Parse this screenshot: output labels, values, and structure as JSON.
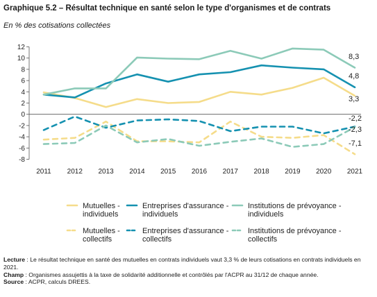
{
  "header": {
    "title": "Graphique 5.2 – Résultat technique en santé selon le type d'organismes et de contrats",
    "subtitle": "En % des cotisations collectées"
  },
  "chart_data": {
    "type": "line",
    "x": [
      "2011",
      "2012",
      "2013",
      "2014",
      "2015",
      "2016",
      "2017",
      "2018",
      "2019",
      "2020",
      "2021"
    ],
    "ylim": [
      -8,
      12
    ],
    "yticks": [
      "12",
      "10",
      "8",
      "6",
      "4",
      "2",
      "0",
      "-2",
      "-4",
      "-6",
      "-8"
    ],
    "grid": false,
    "legend_position": "bottom",
    "series": [
      {
        "name": "Mutuelles - individuels",
        "color": "#f5dc8a",
        "dash": "solid",
        "end_label": "3,3",
        "values": [
          3.9,
          2.9,
          1.3,
          2.7,
          2.0,
          2.2,
          4.0,
          3.5,
          4.7,
          6.5,
          3.3
        ]
      },
      {
        "name": "Entreprises d'assurance - individuels",
        "color": "#1591b0",
        "dash": "solid",
        "end_label": "4,8",
        "values": [
          3.5,
          3.0,
          5.5,
          7.1,
          5.8,
          7.1,
          7.5,
          8.7,
          8.3,
          8.0,
          4.8
        ]
      },
      {
        "name": "Institutions de prévoyance - individuels",
        "color": "#8ccab8",
        "dash": "solid",
        "end_label": "8,3",
        "values": [
          3.5,
          4.6,
          4.6,
          10.1,
          9.9,
          9.8,
          11.3,
          9.9,
          11.7,
          11.5,
          8.3
        ]
      },
      {
        "name": "Mutuelles - collectifs",
        "color": "#f5dc8a",
        "dash": "dash",
        "end_label": "-7,1",
        "values": [
          -4.5,
          -4.2,
          -1.3,
          -4.8,
          -4.8,
          -5.0,
          -1.3,
          -4.0,
          -4.2,
          -3.7,
          -7.1
        ]
      },
      {
        "name": "Entreprises d'assurance - collectifs",
        "color": "#1591b0",
        "dash": "dash",
        "end_label": "-2,2",
        "values": [
          -2.8,
          -0.4,
          -2.4,
          -1.1,
          -0.9,
          -1.2,
          -3.0,
          -2.2,
          -2.2,
          -3.4,
          -2.2
        ]
      },
      {
        "name": "Institutions de prévoyance - collectifs",
        "color": "#8ccab8",
        "dash": "dash",
        "end_label": "-2,3",
        "values": [
          -5.3,
          -5.1,
          -2.0,
          -5.0,
          -4.4,
          -5.6,
          -4.9,
          -4.3,
          -5.8,
          -5.3,
          -2.3
        ]
      }
    ],
    "legend": [
      {
        "line1": "Mutuelles -",
        "line2": "individuels"
      },
      {
        "line1": "Entreprises d'assurance -",
        "line2": "individuels"
      },
      {
        "line1": "Institutions de prévoyance -",
        "line2": "individuels"
      },
      {
        "line1": "Mutuelles -",
        "line2": "collectifs"
      },
      {
        "line1": "Entreprises d'assurance -",
        "line2": "collectifs"
      },
      {
        "line1": "Institutions de prévoyance -",
        "line2": "collectifs"
      }
    ]
  },
  "notes": {
    "lecture_label": "Lecture",
    "lecture_text": " : Le résultat technique en santé des mutuelles en contrats individuels vaut 3,3 % de leurs cotisations en contrats individuels en 2021.",
    "champ_label": "Champ",
    "champ_text": " : Organismes assujettis à la taxe de solidarité additionnelle et contrôlés par l'ACPR au 31/12 de chaque année.",
    "source_label": "Source",
    "source_text": " : ACPR, calculs DREES."
  }
}
